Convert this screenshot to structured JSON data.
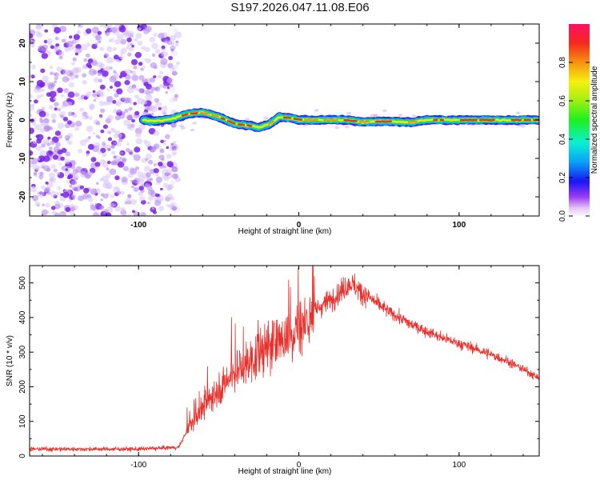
{
  "title": "S197.2026.047.11.08.E06",
  "colors": {
    "snr_line": "#e8302c",
    "scatter": "#8a3cf0",
    "frame": "#000000"
  },
  "chart_data": [
    {
      "type": "heatmap",
      "xlabel": "Height of straight line (km)",
      "ylabel": "Frequency (Hz)",
      "xlim": [
        -168,
        150
      ],
      "ylim": [
        -25,
        25
      ],
      "xticks": [
        -100,
        0,
        100
      ],
      "yticks": [
        -20,
        -10,
        0,
        10,
        20
      ],
      "xtick_labels": [
        "-100",
        "0",
        "100"
      ],
      "ytick_labels": [
        "-20",
        "-10",
        "0",
        "10",
        "20"
      ],
      "noise_region_x": [
        -168,
        -78
      ],
      "signal_start_x": -97,
      "trace": [
        {
          "x": -97,
          "f": 0.0
        },
        {
          "x": -90,
          "f": -0.3
        },
        {
          "x": -80,
          "f": 0.2
        },
        {
          "x": -70,
          "f": 1.5
        },
        {
          "x": -60,
          "f": 2.0
        },
        {
          "x": -50,
          "f": 0.8
        },
        {
          "x": -40,
          "f": -1.0
        },
        {
          "x": -30,
          "f": -1.5
        },
        {
          "x": -25,
          "f": -2.0
        },
        {
          "x": -18,
          "f": -1.0
        },
        {
          "x": -12,
          "f": 0.8
        },
        {
          "x": -5,
          "f": 0.5
        },
        {
          "x": 0,
          "f": 0.0
        },
        {
          "x": 10,
          "f": 0.0
        },
        {
          "x": 30,
          "f": 0.0
        },
        {
          "x": 40,
          "f": -0.5
        },
        {
          "x": 55,
          "f": -0.3
        },
        {
          "x": 70,
          "f": -0.6
        },
        {
          "x": 80,
          "f": 0.0
        },
        {
          "x": 100,
          "f": 0.0
        },
        {
          "x": 120,
          "f": 0.0
        },
        {
          "x": 150,
          "f": 0.0
        }
      ],
      "colorbar": {
        "label": "Normalized spectral amplitude",
        "range": [
          0,
          1
        ],
        "ticks": [
          0.0,
          0.2,
          0.4,
          0.6,
          0.8
        ],
        "tick_labels": [
          "0.0",
          "0.2",
          "0.4",
          "0.6",
          "0.8"
        ]
      }
    },
    {
      "type": "line",
      "xlabel": "Height of straight line (km)",
      "ylabel": "SNR (10 * v/v)",
      "xlim": [
        -168,
        150
      ],
      "ylim": [
        0,
        550
      ],
      "xticks": [
        -100,
        0,
        100
      ],
      "yticks": [
        0,
        100,
        200,
        300,
        400,
        500
      ],
      "xtick_labels": [
        "-100",
        "0",
        "100"
      ],
      "ytick_labels": [
        "0",
        "100",
        "200",
        "300",
        "400",
        "500"
      ],
      "series": [
        {
          "name": "SNR",
          "points": [
            {
              "x": -168,
              "y": 20
            },
            {
              "x": -100,
              "y": 20
            },
            {
              "x": -75,
              "y": 25
            },
            {
              "x": -69,
              "y": 80
            },
            {
              "x": -55,
              "y": 170
            },
            {
              "x": -40,
              "y": 240
            },
            {
              "x": -20,
              "y": 310
            },
            {
              "x": 0,
              "y": 370
            },
            {
              "x": 10,
              "y": 420
            },
            {
              "x": 25,
              "y": 470
            },
            {
              "x": 32,
              "y": 500
            },
            {
              "x": 40,
              "y": 470
            },
            {
              "x": 55,
              "y": 420
            },
            {
              "x": 70,
              "y": 380
            },
            {
              "x": 90,
              "y": 340
            },
            {
              "x": 110,
              "y": 310
            },
            {
              "x": 130,
              "y": 275
            },
            {
              "x": 150,
              "y": 225
            }
          ]
        }
      ]
    }
  ]
}
